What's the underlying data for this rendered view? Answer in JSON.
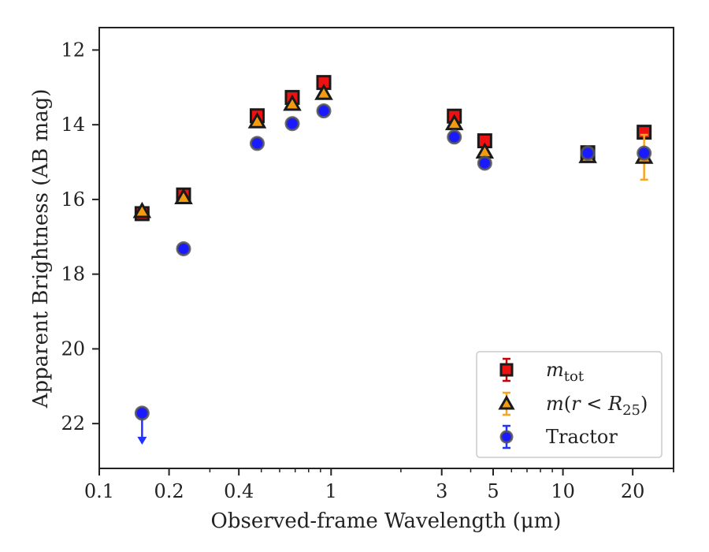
{
  "chart_data": {
    "type": "scatter",
    "xlabel": "Observed-frame Wavelength (μm)",
    "ylabel": "Apparent Brightness (AB mag)",
    "xscale": "log",
    "y_inverted": true,
    "xlim": [
      0.1,
      30
    ],
    "ylim": [
      23.2,
      11.4
    ],
    "xticks": [
      {
        "value": 0.1,
        "label": "0.1"
      },
      {
        "value": 0.2,
        "label": "0.2"
      },
      {
        "value": 0.4,
        "label": "0.4"
      },
      {
        "value": 1,
        "label": "1"
      },
      {
        "value": 3,
        "label": "3"
      },
      {
        "value": 5,
        "label": "5"
      },
      {
        "value": 10,
        "label": "10"
      },
      {
        "value": 20,
        "label": "20"
      }
    ],
    "yticks": [
      {
        "value": 12,
        "label": "12"
      },
      {
        "value": 14,
        "label": "14"
      },
      {
        "value": 16,
        "label": "16"
      },
      {
        "value": 18,
        "label": "18"
      },
      {
        "value": 20,
        "label": "20"
      },
      {
        "value": 22,
        "label": "22"
      }
    ],
    "legend_position": "lower-right",
    "series": [
      {
        "name": "m_tot",
        "marker": "square",
        "color": "#ee1111",
        "errcolor": "#cc0000",
        "points": [
          {
            "x": 0.153,
            "y": 16.38,
            "err": 0.05
          },
          {
            "x": 0.231,
            "y": 15.88,
            "err": 0.05
          },
          {
            "x": 0.48,
            "y": 13.76,
            "err": 0.03
          },
          {
            "x": 0.68,
            "y": 13.27,
            "err": 0.03
          },
          {
            "x": 0.93,
            "y": 12.87,
            "err": 0.03
          },
          {
            "x": 3.4,
            "y": 13.77,
            "err": 0.03
          },
          {
            "x": 4.6,
            "y": 14.43,
            "err": 0.03
          },
          {
            "x": 12.8,
            "y": 14.75,
            "err": 0.04
          },
          {
            "x": 22.4,
            "y": 14.2,
            "err": 0.05
          }
        ]
      },
      {
        "name": "m(r < R_25)",
        "marker": "triangle",
        "color": "#f39c12",
        "errcolor": "#f5a623",
        "points": [
          {
            "x": 0.153,
            "y": 16.32,
            "err": 0.05
          },
          {
            "x": 0.231,
            "y": 15.95,
            "err": 0.05
          },
          {
            "x": 0.48,
            "y": 13.92,
            "err": 0.03
          },
          {
            "x": 0.68,
            "y": 13.45,
            "err": 0.03
          },
          {
            "x": 0.93,
            "y": 13.16,
            "err": 0.03
          },
          {
            "x": 3.4,
            "y": 13.97,
            "err": 0.03
          },
          {
            "x": 4.6,
            "y": 14.73,
            "err": 0.03
          },
          {
            "x": 12.8,
            "y": 14.85,
            "err": 0.04
          },
          {
            "x": 22.4,
            "y": 14.87,
            "err": 0.6
          }
        ]
      },
      {
        "name": "Tractor",
        "marker": "circle",
        "color": "#1a1aff",
        "errcolor": "#2233ff",
        "points": [
          {
            "x": 0.153,
            "y": 21.72,
            "err": 0.05,
            "upper_limit": true
          },
          {
            "x": 0.231,
            "y": 17.32,
            "err": 0.05
          },
          {
            "x": 0.48,
            "y": 14.5,
            "err": 0.03
          },
          {
            "x": 0.68,
            "y": 13.97,
            "err": 0.03
          },
          {
            "x": 0.93,
            "y": 13.63,
            "err": 0.03
          },
          {
            "x": 3.4,
            "y": 14.33,
            "err": 0.03
          },
          {
            "x": 4.6,
            "y": 15.03,
            "err": 0.03
          },
          {
            "x": 12.8,
            "y": 14.76,
            "err": 0.04
          },
          {
            "x": 22.4,
            "y": 14.76,
            "err": 0.04
          }
        ]
      }
    ]
  }
}
